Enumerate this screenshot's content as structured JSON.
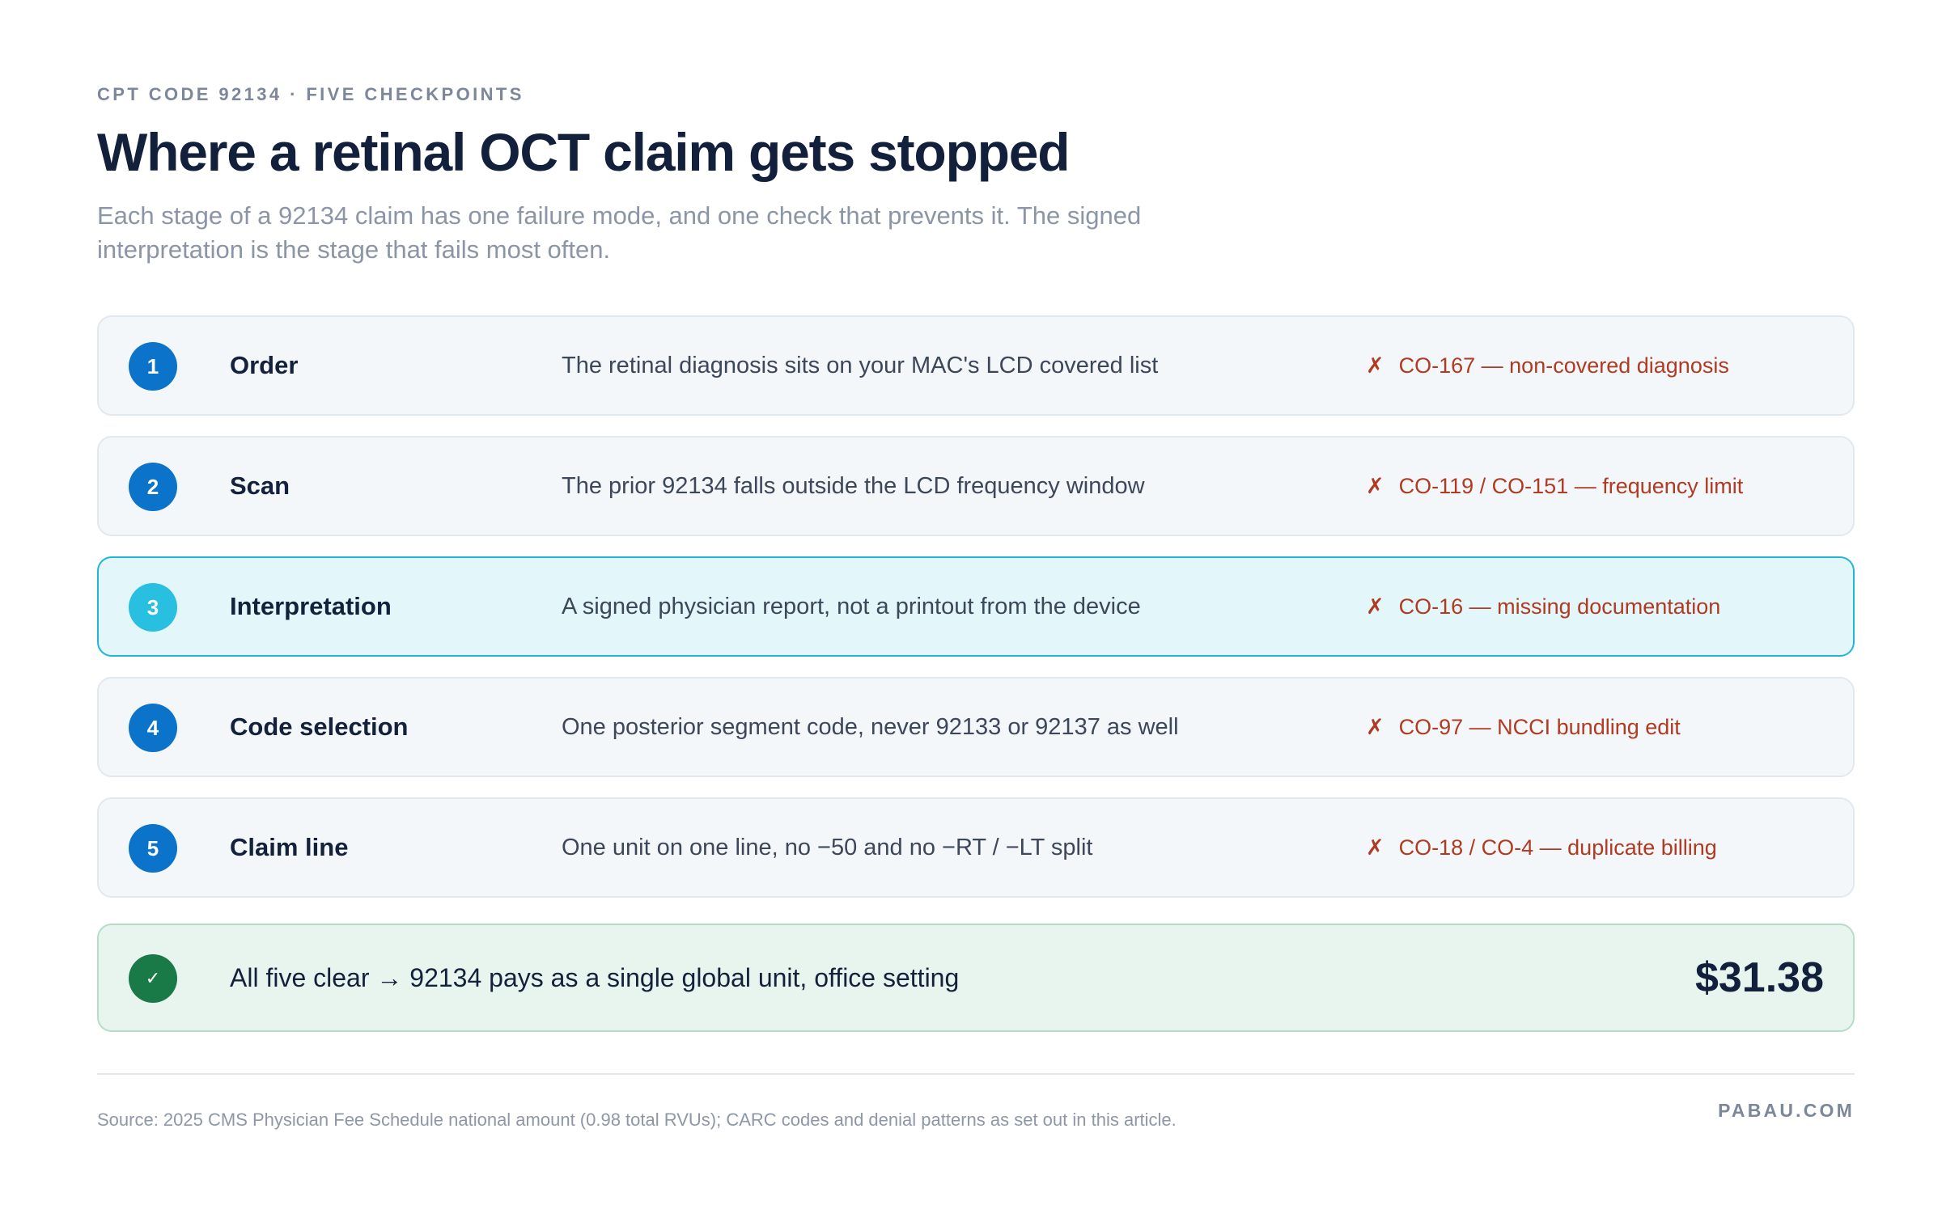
{
  "header": {
    "eyebrow": "CPT CODE 92134 · FIVE CHECKPOINTS",
    "title": "Where a retinal OCT claim gets stopped",
    "subtitle": "Each stage of a 92134 claim has one failure mode, and one check that prevents it. The signed interpretation is the stage that fails most often."
  },
  "stages": [
    {
      "number": "1",
      "name": "Order",
      "check": "The retinal diagnosis sits on your MAC's LCD covered list",
      "denial": "CO-167 — non-covered diagnosis",
      "highlighted": false
    },
    {
      "number": "2",
      "name": "Scan",
      "check": "The prior 92134 falls outside the LCD frequency window",
      "denial": "CO-119 / CO-151 — frequency limit",
      "highlighted": false
    },
    {
      "number": "3",
      "name": "Interpretation",
      "check": "A signed physician report, not a printout from the device",
      "denial": "CO-16 — missing documentation",
      "highlighted": true
    },
    {
      "number": "4",
      "name": "Code selection",
      "check": "One posterior segment code, never 92133 or 92137 as well",
      "denial": "CO-97 — NCCI bundling edit",
      "highlighted": false
    },
    {
      "number": "5",
      "name": "Claim line",
      "check": "One unit on one line, no −50 and no −RT / −LT split",
      "denial": "CO-18 / CO-4 — duplicate billing",
      "highlighted": false
    }
  ],
  "denial_mark": "✗",
  "result": {
    "icon": "✓",
    "text": "All five clear → 92134 pays as a single global unit, office setting",
    "amount": "$31.38"
  },
  "footer": {
    "source": "Source: 2025 CMS Physician Fee Schedule national amount (0.98 total RVUs); CARC codes and denial patterns as set out in this article.",
    "brand": "PABAU.COM"
  },
  "colors": {
    "badge": "#0b73c9",
    "highlight_badge": "#29bfe0",
    "highlight_border": "#22b6d6",
    "denial_text": "#b13a22",
    "success_badge": "#1a7a47"
  }
}
